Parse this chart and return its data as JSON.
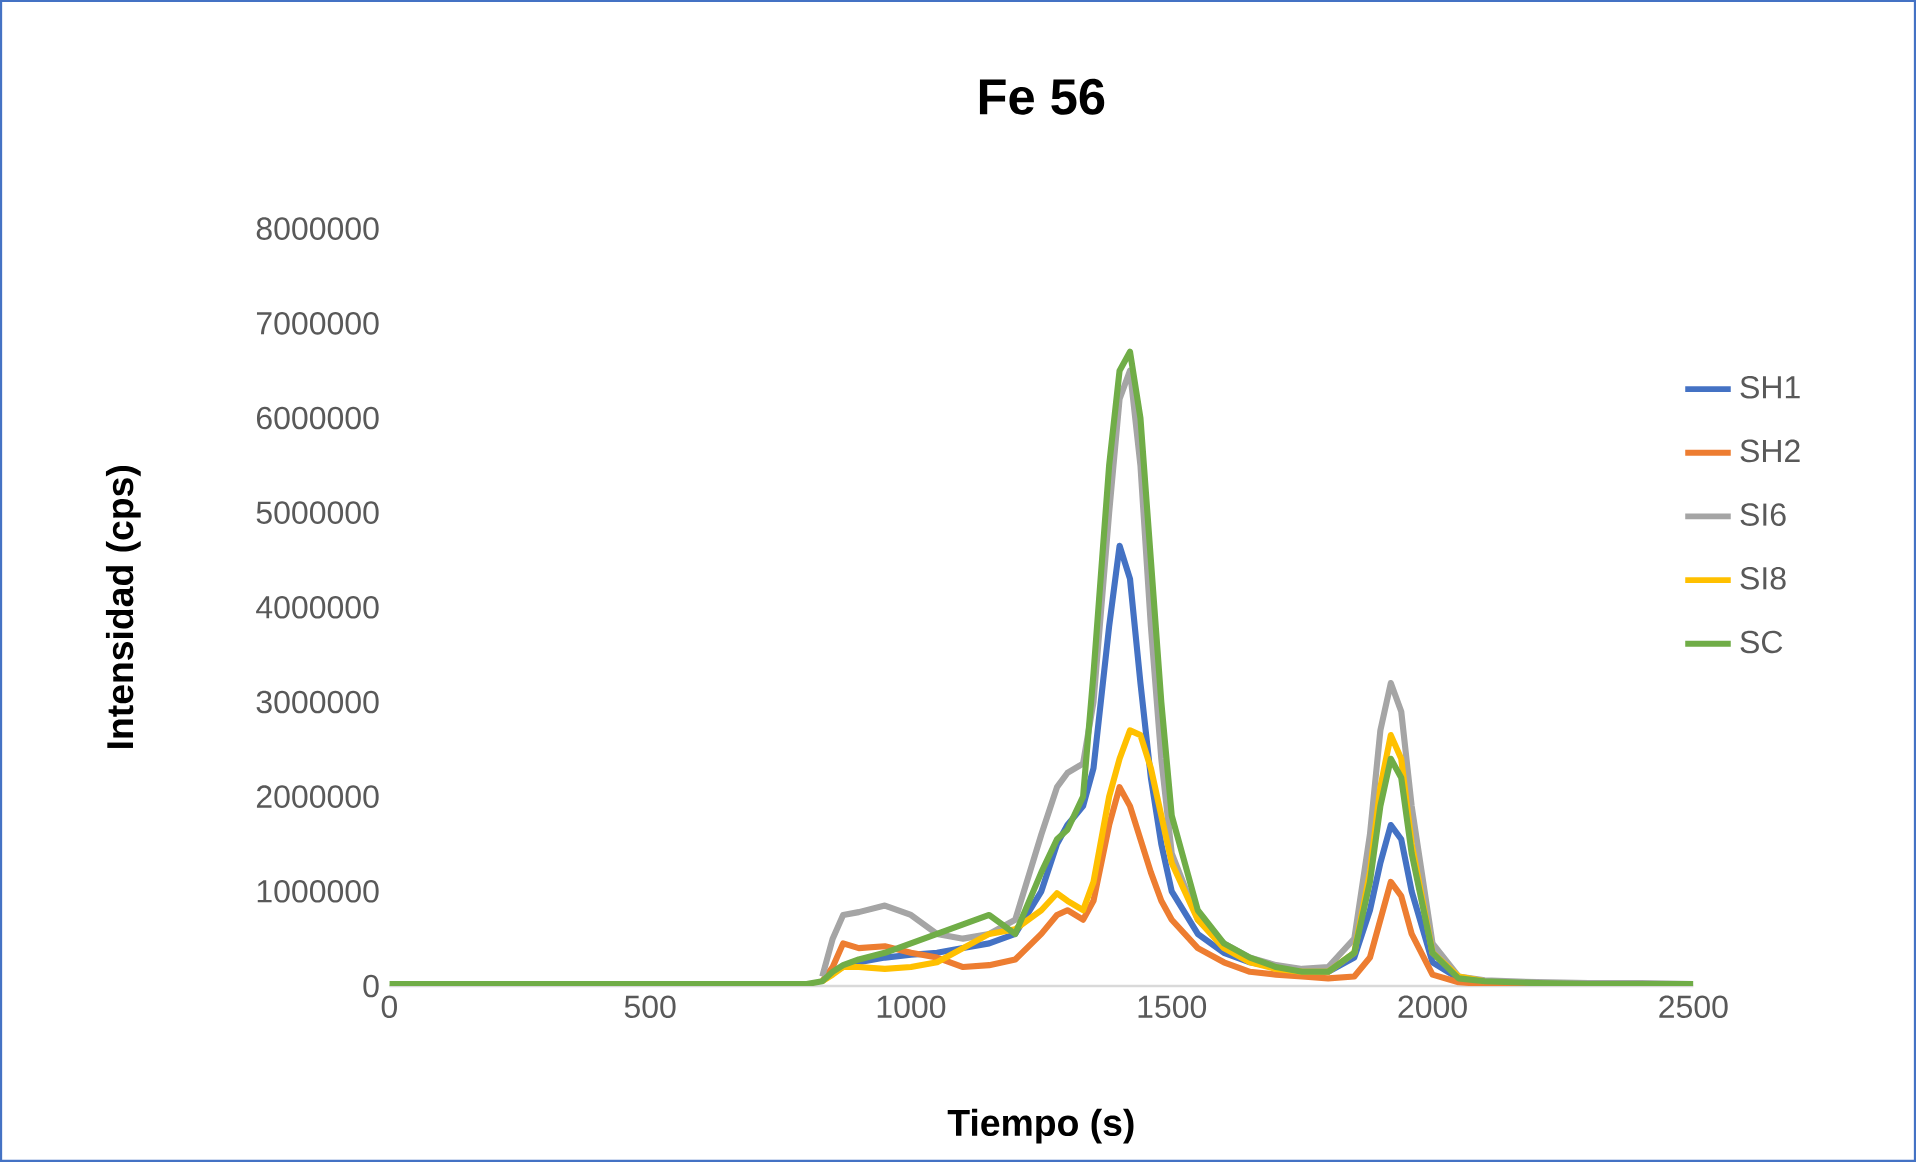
{
  "chart_data": {
    "type": "line",
    "title": "Fe 56",
    "xlabel": "Tiempo (s)",
    "ylabel": "Intensidad (cps)",
    "x": [
      0,
      500,
      700,
      800,
      830,
      850,
      870,
      900,
      950,
      1000,
      1050,
      1100,
      1150,
      1200,
      1250,
      1280,
      1300,
      1330,
      1350,
      1380,
      1400,
      1420,
      1440,
      1460,
      1480,
      1500,
      1550,
      1600,
      1650,
      1700,
      1750,
      1800,
      1850,
      1880,
      1900,
      1920,
      1940,
      1960,
      2000,
      2050,
      2100,
      2200,
      2300,
      2400,
      2500
    ],
    "series": [
      {
        "name": "SH1",
        "color": "#4472c4",
        "values": [
          null,
          null,
          null,
          null,
          null,
          150000,
          200000,
          250000,
          300000,
          330000,
          350000,
          400000,
          450000,
          550000,
          1000000,
          1500000,
          1700000,
          1900000,
          2300000,
          3800000,
          4650000,
          4300000,
          3200000,
          2200000,
          1500000,
          1000000,
          550000,
          350000,
          250000,
          200000,
          150000,
          150000,
          300000,
          800000,
          1300000,
          1700000,
          1550000,
          1000000,
          250000,
          80000,
          50000,
          null,
          null,
          null,
          null
        ]
      },
      {
        "name": "SH2",
        "color": "#ed7d31",
        "values": [
          null,
          null,
          null,
          null,
          50000,
          200000,
          450000,
          400000,
          420000,
          350000,
          300000,
          200000,
          220000,
          280000,
          550000,
          750000,
          800000,
          700000,
          900000,
          1700000,
          2100000,
          1900000,
          1550000,
          1200000,
          900000,
          700000,
          400000,
          250000,
          150000,
          120000,
          100000,
          80000,
          100000,
          300000,
          700000,
          1100000,
          950000,
          550000,
          120000,
          40000,
          20000,
          20000,
          20000,
          null,
          null
        ]
      },
      {
        "name": "SI6",
        "color": "#a5a5a5",
        "values": [
          null,
          null,
          null,
          null,
          100000,
          500000,
          750000,
          780000,
          850000,
          750000,
          550000,
          500000,
          550000,
          700000,
          1600000,
          2100000,
          2250000,
          2350000,
          3000000,
          5000000,
          6200000,
          6500000,
          5500000,
          3800000,
          2400000,
          1400000,
          700000,
          450000,
          300000,
          220000,
          180000,
          200000,
          500000,
          1600000,
          2700000,
          3200000,
          2900000,
          1900000,
          450000,
          100000,
          60000,
          40000,
          30000,
          30000,
          20000
        ]
      },
      {
        "name": "SI8",
        "color": "#ffc000",
        "values": [
          null,
          null,
          null,
          null,
          50000,
          120000,
          200000,
          200000,
          180000,
          200000,
          250000,
          400000,
          550000,
          600000,
          800000,
          980000,
          900000,
          800000,
          1100000,
          2000000,
          2400000,
          2700000,
          2650000,
          2300000,
          1800000,
          1300000,
          700000,
          400000,
          250000,
          180000,
          150000,
          150000,
          350000,
          1200000,
          2100000,
          2650000,
          2400000,
          1500000,
          350000,
          100000,
          50000,
          null,
          null,
          null,
          null
        ]
      },
      {
        "name": "SC",
        "color": "#70ad47",
        "values": [
          20000,
          20000,
          20000,
          20000,
          50000,
          150000,
          220000,
          280000,
          350000,
          450000,
          550000,
          650000,
          750000,
          550000,
          1200000,
          1550000,
          1650000,
          2000000,
          3300000,
          5500000,
          6500000,
          6700000,
          6000000,
          4500000,
          3000000,
          1800000,
          800000,
          450000,
          300000,
          200000,
          150000,
          150000,
          350000,
          1100000,
          1900000,
          2400000,
          2200000,
          1400000,
          350000,
          80000,
          50000,
          30000,
          20000,
          20000,
          20000
        ]
      }
    ],
    "xlim": [
      0,
      2500
    ],
    "xticks": [
      0,
      500,
      1000,
      1500,
      2000,
      2500
    ],
    "ylim": [
      0,
      8000000
    ],
    "yticks": [
      0,
      1000000,
      2000000,
      3000000,
      4000000,
      5000000,
      6000000,
      7000000,
      8000000
    ],
    "legend": "right",
    "marker": "none",
    "line_style": "solid"
  }
}
